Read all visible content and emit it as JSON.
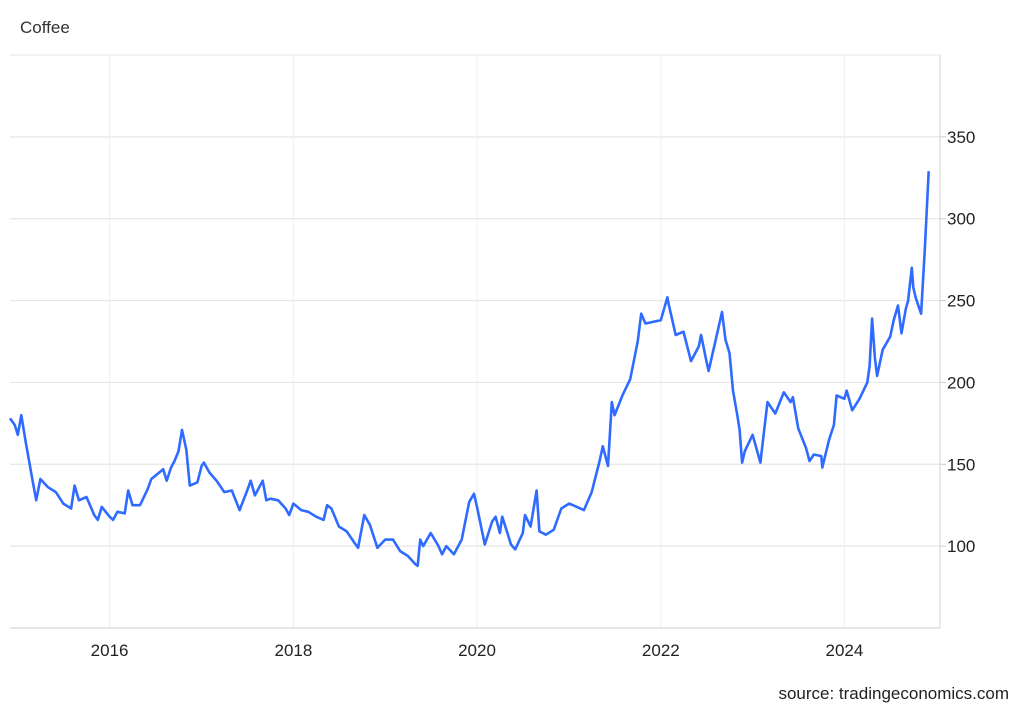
{
  "chart_data": {
    "type": "line",
    "title": "Coffee",
    "source": "source: tradingeconomics.com",
    "xlabel": "",
    "ylabel": "",
    "x_axis": "date",
    "xlim": [
      "2014-12-01",
      "2025-01-15"
    ],
    "ylim": [
      50,
      400
    ],
    "x_ticks": [
      "2016",
      "2018",
      "2020",
      "2022",
      "2024"
    ],
    "y_ticks": [
      100,
      150,
      200,
      250,
      300,
      350
    ],
    "y_axis_position": "right",
    "grid": true,
    "legend": "none",
    "line_color": "#2f6bff",
    "series": [
      {
        "x": [
          "2014-12-01",
          "2014-12-20",
          "2015-01-01",
          "2015-01-15",
          "2015-02-01",
          "2015-03-01",
          "2015-03-15",
          "2015-04-01",
          "2015-05-01",
          "2015-06-01",
          "2015-07-01",
          "2015-08-01",
          "2015-08-15",
          "2015-09-01",
          "2015-10-01",
          "2015-11-01",
          "2015-11-15",
          "2015-12-01",
          "2016-01-01",
          "2016-01-15",
          "2016-02-01",
          "2016-03-01",
          "2016-03-15",
          "2016-04-01",
          "2016-05-01",
          "2016-06-01",
          "2016-06-15",
          "2016-07-01",
          "2016-08-01",
          "2016-08-15",
          "2016-09-01",
          "2016-09-15",
          "2016-10-01",
          "2016-10-15",
          "2016-11-01",
          "2016-11-15",
          "2016-12-01",
          "2016-12-15",
          "2017-01-01",
          "2017-01-10",
          "2017-02-01",
          "2017-03-01",
          "2017-04-01",
          "2017-05-01",
          "2017-06-01",
          "2017-07-01",
          "2017-07-15",
          "2017-08-01",
          "2017-09-01",
          "2017-09-15",
          "2017-10-01",
          "2017-11-01",
          "2017-12-01",
          "2017-12-15",
          "2018-01-01",
          "2018-02-01",
          "2018-03-01",
          "2018-04-01",
          "2018-05-01",
          "2018-05-15",
          "2018-06-01",
          "2018-07-01",
          "2018-08-01",
          "2018-09-01",
          "2018-09-15",
          "2018-10-10",
          "2018-11-01",
          "2018-12-01",
          "2019-01-01",
          "2019-02-01",
          "2019-03-01",
          "2019-04-01",
          "2019-05-01",
          "2019-05-10",
          "2019-05-20",
          "2019-06-01",
          "2019-07-01",
          "2019-08-01",
          "2019-08-15",
          "2019-09-01",
          "2019-10-01",
          "2019-11-01",
          "2019-12-01",
          "2019-12-20",
          "2020-01-01",
          "2020-02-01",
          "2020-03-01",
          "2020-03-15",
          "2020-04-01",
          "2020-04-10",
          "2020-05-01",
          "2020-05-15",
          "2020-06-01",
          "2020-07-01",
          "2020-07-10",
          "2020-08-01",
          "2020-08-25",
          "2020-09-05",
          "2020-10-01",
          "2020-11-01",
          "2020-12-01",
          "2021-01-01",
          "2021-02-01",
          "2021-03-01",
          "2021-04-01",
          "2021-05-01",
          "2021-05-15",
          "2021-06-05",
          "2021-06-20",
          "2021-07-01",
          "2021-08-01",
          "2021-09-01",
          "2021-10-01",
          "2021-10-15",
          "2021-11-01",
          "2022-01-01",
          "2022-01-27",
          "2022-02-01",
          "2022-03-01",
          "2022-04-01",
          "2022-05-01",
          "2022-06-01",
          "2022-06-10",
          "2022-07-01",
          "2022-07-10",
          "2022-08-01",
          "2022-09-01",
          "2022-09-15",
          "2022-10-01",
          "2022-10-15",
          "2022-11-01",
          "2022-11-10",
          "2022-11-20",
          "2022-12-01",
          "2023-01-01",
          "2023-02-01",
          "2023-02-15",
          "2023-03-01",
          "2023-04-01",
          "2023-05-05",
          "2023-06-01",
          "2023-06-10",
          "2023-07-01",
          "2023-08-01",
          "2023-08-15",
          "2023-09-01",
          "2023-10-01",
          "2023-10-05",
          "2023-11-01",
          "2023-11-20",
          "2023-12-01",
          "2024-01-01",
          "2024-01-10",
          "2024-02-01",
          "2024-03-01",
          "2024-04-01",
          "2024-04-10",
          "2024-04-20",
          "2024-05-01",
          "2024-05-10",
          "2024-06-01",
          "2024-07-01",
          "2024-07-15",
          "2024-08-01",
          "2024-08-15",
          "2024-09-01",
          "2024-09-10",
          "2024-09-25",
          "2024-10-01",
          "2024-10-10",
          "2024-11-01",
          "2024-11-15",
          "2024-12-01"
        ],
        "values": [
          178,
          174,
          168,
          180,
          164,
          140,
          128,
          141,
          136,
          133,
          126,
          123,
          137,
          128,
          130,
          119,
          116,
          124,
          118,
          116,
          121,
          120,
          134,
          125,
          125,
          135,
          141,
          143,
          147,
          140,
          148,
          152,
          158,
          171,
          159,
          137,
          138,
          139,
          149,
          151,
          145,
          140,
          133,
          134,
          122,
          134,
          140,
          131,
          140,
          128,
          129,
          128,
          123,
          119,
          126,
          122,
          121,
          118,
          116,
          125,
          123,
          112,
          109,
          102,
          99,
          119,
          113,
          99,
          104,
          104,
          97,
          94,
          89,
          88,
          104,
          100,
          108,
          100,
          95,
          100,
          95,
          104,
          127,
          132,
          124,
          101,
          115,
          118,
          108,
          118,
          108,
          101,
          98,
          108,
          119,
          112,
          134,
          109,
          107,
          110,
          123,
          126,
          124,
          122,
          133,
          151,
          161,
          149,
          188,
          180,
          192,
          202,
          225,
          242,
          236,
          238,
          252,
          248,
          229,
          231,
          213,
          222,
          229,
          213,
          207,
          222,
          243,
          226,
          218,
          195,
          180,
          171,
          151,
          158,
          168,
          151,
          170,
          188,
          181,
          194,
          188,
          191,
          172,
          160,
          152,
          156,
          155,
          148,
          165,
          174,
          192,
          190,
          195,
          183,
          190,
          200,
          210,
          239,
          215,
          204,
          220,
          228,
          238,
          247,
          230,
          245,
          250,
          270,
          258,
          252,
          242,
          280,
          329
        ]
      }
    ]
  }
}
